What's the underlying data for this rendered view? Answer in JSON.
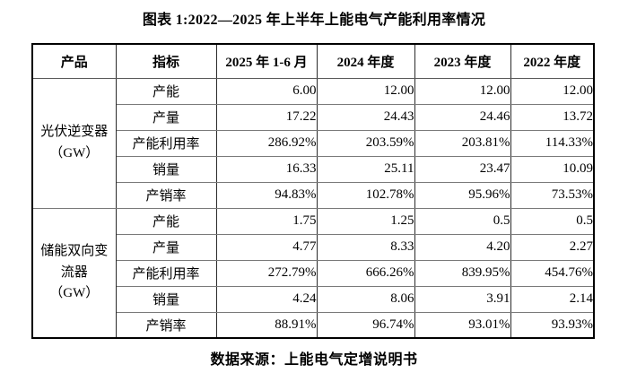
{
  "title": "图表 1:2022—2025 年上半年上能电气产能利用率情况",
  "source": "数据来源：上能电气定增说明书",
  "table": {
    "headers": [
      "产品",
      "指标",
      "2025 年 1-6 月",
      "2024 年度",
      "2023 年度",
      "2022 年度"
    ],
    "groups": [
      {
        "product": "光伏逆变器\n（GW）",
        "rows": [
          {
            "metric": "产能",
            "values": [
              "6.00",
              "12.00",
              "12.00",
              "12.00"
            ]
          },
          {
            "metric": "产量",
            "values": [
              "17.22",
              "24.43",
              "24.46",
              "13.72"
            ]
          },
          {
            "metric": "产能利用率",
            "values": [
              "286.92%",
              "203.59%",
              "203.81%",
              "114.33%"
            ]
          },
          {
            "metric": "销量",
            "values": [
              "16.33",
              "25.11",
              "23.47",
              "10.09"
            ]
          },
          {
            "metric": "产销率",
            "values": [
              "94.83%",
              "102.78%",
              "95.96%",
              "73.53%"
            ]
          }
        ]
      },
      {
        "product": "储能双向变\n流器\n（GW）",
        "rows": [
          {
            "metric": "产能",
            "values": [
              "1.75",
              "1.25",
              "0.5",
              "0.5"
            ]
          },
          {
            "metric": "产量",
            "values": [
              "4.77",
              "8.33",
              "4.20",
              "2.27"
            ]
          },
          {
            "metric": "产能利用率",
            "values": [
              "272.79%",
              "666.26%",
              "839.95%",
              "454.76%"
            ]
          },
          {
            "metric": "销量",
            "values": [
              "4.24",
              "8.06",
              "3.91",
              "2.14"
            ]
          },
          {
            "metric": "产销率",
            "values": [
              "88.91%",
              "96.74%",
              "93.01%",
              "93.93%"
            ]
          }
        ]
      }
    ]
  }
}
